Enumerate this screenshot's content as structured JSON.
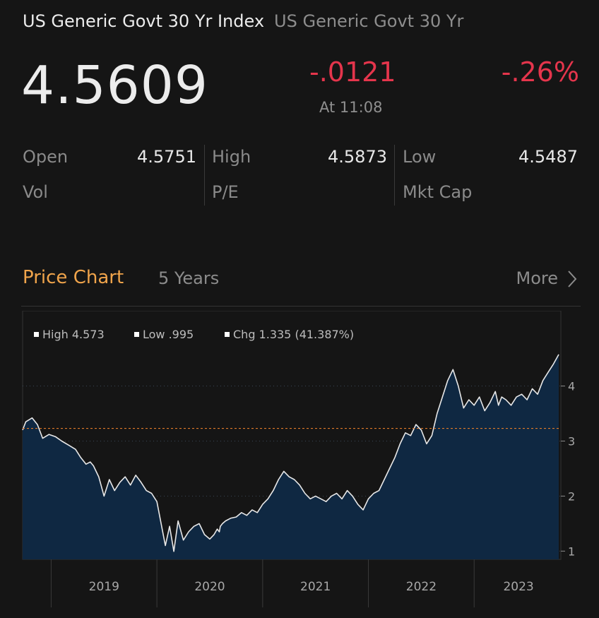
{
  "header": {
    "title": "US Generic Govt 30 Yr Index",
    "subtitle": "US Generic Govt 30 Yr"
  },
  "quote": {
    "price": "4.5609",
    "change": "-.0121",
    "change_pct": "-.26%",
    "time": "At 11:08"
  },
  "stats": {
    "open_label": "Open",
    "open_value": "4.5751",
    "high_label": "High",
    "high_value": "4.5873",
    "low_label": "Low",
    "low_value": "4.5487",
    "vol_label": "Vol",
    "pe_label": "P/E",
    "mktcap_label": "Mkt Cap"
  },
  "section": {
    "title": "Price Chart",
    "range": "5 Years",
    "more": "More"
  },
  "colors": {
    "accent": "#f0a44b",
    "negative": "#e5354c",
    "area_fill": "#0f2842",
    "line": "#e8e8e8",
    "reference_line": "#e07a2a"
  },
  "chart_data": {
    "type": "area",
    "legend": [
      {
        "label": "High 4.573"
      },
      {
        "label": "Low .995"
      },
      {
        "label": "Chg 1.335 (41.387%)"
      }
    ],
    "x_tick_labels": [
      "2019",
      "2020",
      "2021",
      "2022",
      "2023"
    ],
    "y_ticks": [
      1,
      2,
      3,
      4
    ],
    "ylim": [
      0.85,
      4.7
    ],
    "xlim": [
      2018.33,
      2023.42
    ],
    "reference_value": 3.23,
    "series": [
      {
        "x": [
          2018.33,
          2018.36,
          2018.42,
          2018.47,
          2018.52,
          2018.58,
          2018.64,
          2018.7,
          2018.77,
          2018.83,
          2018.88,
          2018.93,
          2018.97,
          2019.0,
          2019.05,
          2019.1,
          2019.15,
          2019.2,
          2019.25,
          2019.3,
          2019.35,
          2019.4,
          2019.45,
          2019.5,
          2019.55,
          2019.6,
          2019.64,
          2019.68,
          2019.72,
          2019.76,
          2019.8,
          2019.85,
          2019.9,
          2019.95,
          2020.0,
          2020.05,
          2020.1,
          2020.14,
          2020.17,
          2020.19,
          2020.2,
          2020.22,
          2020.25,
          2020.3,
          2020.35,
          2020.4,
          2020.45,
          2020.5,
          2020.55,
          2020.6,
          2020.65,
          2020.7,
          2020.75,
          2020.8,
          2020.85,
          2020.9,
          2020.95,
          2021.0,
          2021.05,
          2021.1,
          2021.15,
          2021.2,
          2021.25,
          2021.3,
          2021.35,
          2021.4,
          2021.45,
          2021.5,
          2021.55,
          2021.6,
          2021.65,
          2021.7,
          2021.75,
          2021.8,
          2021.85,
          2021.9,
          2021.95,
          2022.0,
          2022.05,
          2022.1,
          2022.15,
          2022.2,
          2022.25,
          2022.3,
          2022.35,
          2022.4,
          2022.45,
          2022.5,
          2022.55,
          2022.6,
          2022.65,
          2022.7,
          2022.75,
          2022.8,
          2022.83,
          2022.86,
          2022.9,
          2022.95,
          2023.0,
          2023.05,
          2023.1,
          2023.15,
          2023.2,
          2023.25,
          2023.3,
          2023.35,
          2023.4
        ],
        "y": [
          3.2,
          3.35,
          3.42,
          3.3,
          3.05,
          3.12,
          3.08,
          3.0,
          2.92,
          2.85,
          2.7,
          2.58,
          2.62,
          2.55,
          2.35,
          2.0,
          2.3,
          2.1,
          2.25,
          2.35,
          2.2,
          2.38,
          2.25,
          2.1,
          2.05,
          1.9,
          1.5,
          1.1,
          1.45,
          0.995,
          1.55,
          1.2,
          1.35,
          1.45,
          1.5,
          1.3,
          1.22,
          1.3,
          1.4,
          1.35,
          1.45,
          1.5,
          1.55,
          1.6,
          1.62,
          1.7,
          1.65,
          1.75,
          1.7,
          1.85,
          1.95,
          2.1,
          2.3,
          2.45,
          2.35,
          2.3,
          2.2,
          2.05,
          1.95,
          2.0,
          1.95,
          1.9,
          2.0,
          2.05,
          1.95,
          2.1,
          2.0,
          1.85,
          1.75,
          1.95,
          2.05,
          2.1,
          2.3,
          2.5,
          2.7,
          2.95,
          3.15,
          3.1,
          3.3,
          3.2,
          2.95,
          3.1,
          3.5,
          3.8,
          4.1,
          4.3,
          4.0,
          3.6,
          3.75,
          3.65,
          3.8,
          3.55,
          3.7,
          3.9,
          3.65,
          3.8,
          3.75,
          3.65,
          3.8,
          3.85,
          3.75,
          3.95,
          3.85,
          4.1,
          4.25,
          4.4,
          4.573
        ]
      }
    ]
  }
}
